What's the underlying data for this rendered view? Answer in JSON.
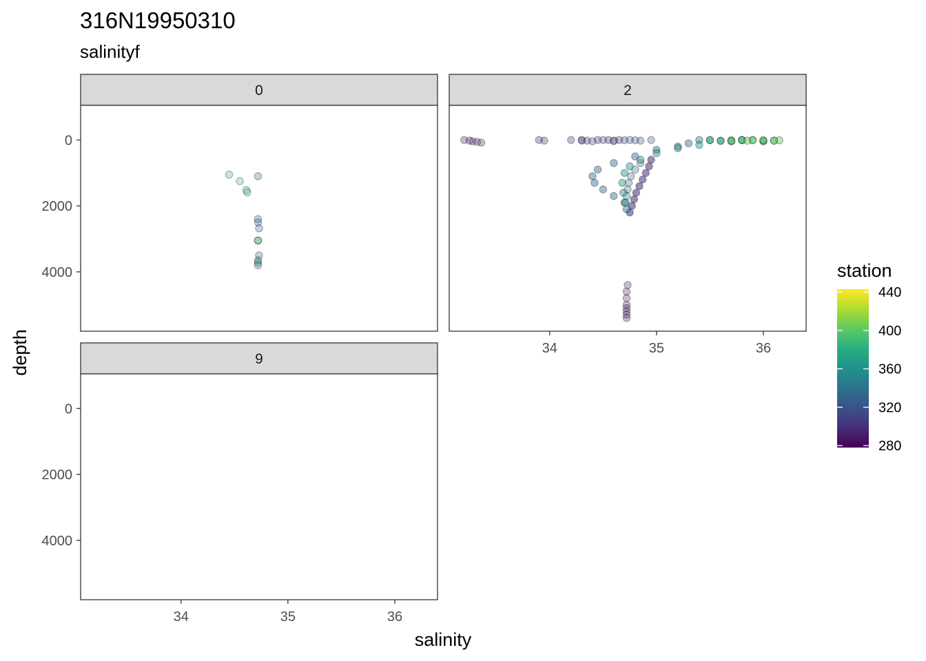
{
  "chart_data": {
    "type": "scatter",
    "title": "316N19950310",
    "subtitle": "salinityf",
    "xlabel": "salinity",
    "ylabel": "depth",
    "xlim": [
      33.06,
      36.4
    ],
    "ylim": [
      5800,
      -1050
    ],
    "y_reversed": true,
    "x_ticks": [
      "34",
      "35",
      "36"
    ],
    "y_ticks": [
      "0",
      "2000",
      "4000"
    ],
    "grid": false,
    "legend": {
      "title": "station",
      "position": "right",
      "type": "colorbar",
      "range": [
        278,
        443
      ],
      "labels": [
        "280",
        "320",
        "360",
        "400",
        "440"
      ],
      "label_values": [
        280,
        320,
        360,
        400,
        440
      ]
    },
    "panels": [
      {
        "label": "0",
        "series": [
          {
            "station": 390,
            "opacity": 0.3,
            "salinity": [
              34.45,
              34.55,
              34.61,
              34.62
            ],
            "depth": [
              1050,
              1250,
              1520,
              1590
            ]
          },
          {
            "station": 340,
            "opacity": 0.3,
            "salinity": [
              34.72,
              34.72,
              34.72,
              34.73,
              34.72,
              34.73,
              34.72,
              34.72,
              34.72
            ],
            "depth": [
              1100,
              2400,
              2500,
              2680,
              3050,
              3500,
              3650,
              3720,
              3800
            ]
          },
          {
            "station": 400,
            "opacity": 0.3,
            "salinity": [
              34.72
            ],
            "depth": [
              3050
            ]
          }
        ]
      },
      {
        "label": "2",
        "series": [
          {
            "station": 290,
            "opacity": 0.3,
            "salinity": [
              33.2,
              33.25,
              33.28,
              33.32,
              33.36,
              33.9,
              33.95,
              34.2,
              34.3,
              34.35,
              34.45,
              34.55,
              34.65,
              34.72,
              34.72,
              34.72,
              34.72,
              34.72,
              34.72,
              34.72,
              34.73
            ],
            "depth": [
              0,
              20,
              40,
              60,
              80,
              0,
              20,
              0,
              0,
              20,
              0,
              0,
              0,
              5000,
              5100,
              5200,
              5300,
              5400,
              4800,
              4600,
              4400
            ]
          },
          {
            "station": 300,
            "opacity": 0.55,
            "salinity": [
              34.95,
              34.93,
              34.9,
              34.87,
              34.84,
              34.81,
              34.79,
              34.77,
              34.75
            ],
            "depth": [
              600,
              800,
              1000,
              1200,
              1400,
              1600,
              1800,
              2000,
              2200
            ]
          },
          {
            "station": 310,
            "opacity": 0.3,
            "salinity": [
              34.3,
              34.4,
              34.5,
              34.6,
              34.7
            ],
            "depth": [
              20,
              40,
              0,
              30,
              10
            ]
          },
          {
            "station": 320,
            "opacity": 0.3,
            "salinity": [
              34.75,
              34.85,
              34.95,
              34.6,
              34.8
            ],
            "depth": [
              0,
              20,
              0,
              20,
              10
            ]
          },
          {
            "station": 330,
            "opacity": 0.3,
            "salinity": [
              34.85,
              34.8,
              34.76,
              34.74,
              34.73,
              34.72
            ],
            "depth": [
              700,
              900,
              1100,
              1300,
              1500,
              1700
            ]
          },
          {
            "station": 340,
            "opacity": 0.45,
            "salinity": [
              35.3,
              35.2,
              35.0,
              34.8,
              34.6,
              34.45,
              34.4,
              34.42,
              34.5,
              34.6,
              34.7,
              34.72
            ],
            "depth": [
              100,
              200,
              300,
              500,
              700,
              900,
              1100,
              1300,
              1500,
              1700,
              1900,
              2100
            ]
          },
          {
            "station": 355,
            "opacity": 0.45,
            "salinity": [
              35.4,
              35.6,
              35.8,
              36.0,
              35.5,
              35.7
            ],
            "depth": [
              0,
              20,
              0,
              30,
              10,
              40
            ]
          },
          {
            "station": 365,
            "opacity": 0.45,
            "salinity": [
              35.4,
              35.2,
              35.0,
              34.85,
              34.75,
              34.7,
              34.68,
              34.69,
              34.71
            ],
            "depth": [
              150,
              250,
              400,
              600,
              800,
              1000,
              1300,
              1600,
              1900
            ]
          },
          {
            "station": 380,
            "opacity": 0.45,
            "salinity": [
              35.5,
              35.7,
              35.9,
              36.1,
              35.6,
              35.8,
              36.0
            ],
            "depth": [
              0,
              10,
              0,
              20,
              30,
              10,
              40
            ]
          },
          {
            "station": 405,
            "opacity": 0.45,
            "salinity": [
              35.8,
              35.9,
              36.0,
              36.1,
              36.15,
              35.7,
              35.85
            ],
            "depth": [
              0,
              10,
              0,
              20,
              10,
              30,
              20
            ]
          }
        ]
      },
      {
        "label": "9",
        "series": []
      }
    ]
  }
}
